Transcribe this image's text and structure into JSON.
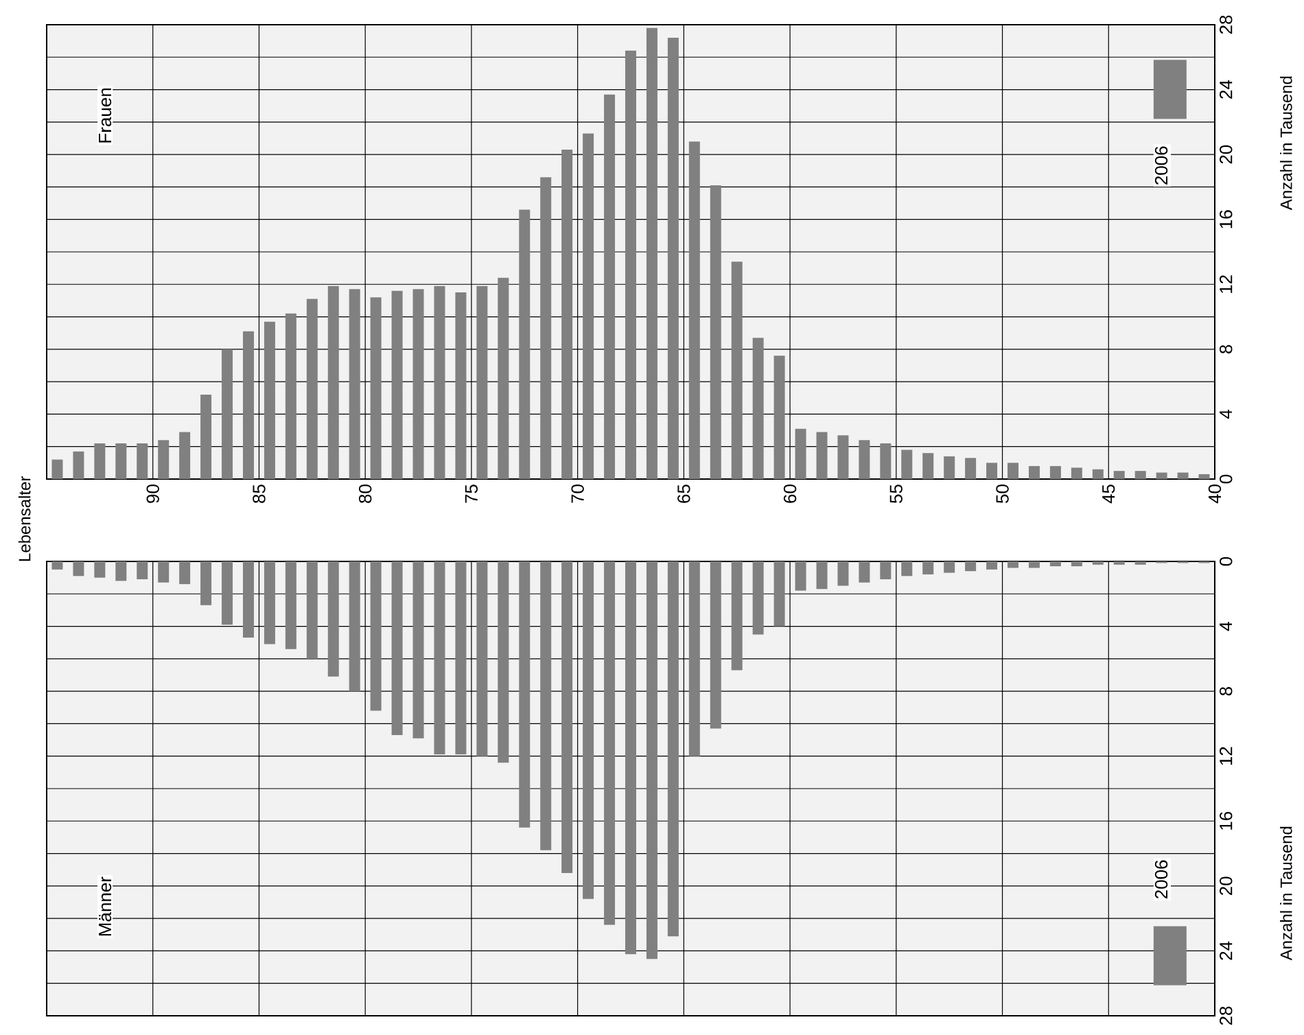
{
  "chart_data": [
    {
      "type": "histogram",
      "title": "Frauen",
      "annotations": [
        "Lebensalter"
      ],
      "ylabel": "Anzahl in Tausend",
      "bins": [
        40,
        41,
        42,
        43,
        44,
        45,
        46,
        47,
        48,
        49,
        50,
        51,
        52,
        53,
        54,
        55,
        56,
        57,
        58,
        59,
        60,
        61,
        62,
        63,
        64,
        65,
        66,
        67,
        68,
        69,
        70,
        71,
        72,
        73,
        74,
        75,
        76,
        77,
        78,
        79,
        80,
        81,
        82,
        83,
        84,
        85,
        86,
        87,
        88,
        89,
        90,
        91,
        92,
        93,
        94,
        95
      ],
      "series": [
        {
          "name": "2006",
          "color": "#808080",
          "values": [
            0.3,
            0.4,
            0.4,
            0.5,
            0.5,
            0.6,
            0.7,
            0.8,
            0.8,
            1.0,
            1.0,
            1.3,
            1.4,
            1.6,
            1.8,
            2.2,
            2.4,
            2.7,
            2.9,
            3.1,
            7.6,
            8.7,
            13.4,
            18.1,
            20.8,
            27.2,
            27.8,
            26.4,
            23.7,
            21.3,
            20.3,
            18.6,
            16.6,
            12.4,
            11.9,
            11.5,
            11.9,
            11.7,
            11.6,
            11.2,
            11.7,
            11.9,
            11.1,
            10.2,
            9.7,
            9.1,
            8.0,
            5.2,
            2.9,
            2.4,
            2.2,
            2.2,
            2.2,
            1.7,
            1.2
          ]
        }
      ],
      "xlim": [
        95,
        40
      ],
      "xticks": [
        90,
        85,
        80,
        75,
        70,
        65,
        60,
        55,
        50,
        45,
        40
      ],
      "ylim": [
        0,
        28
      ],
      "yticks": [
        0,
        4,
        8,
        12,
        16,
        20,
        24,
        28
      ],
      "grid": true,
      "legend": "top right"
    },
    {
      "type": "histogram",
      "title": "Männer",
      "ylabel": "Anzahl in Tausend",
      "bins": [
        40,
        41,
        42,
        43,
        44,
        45,
        46,
        47,
        48,
        49,
        50,
        51,
        52,
        53,
        54,
        55,
        56,
        57,
        58,
        59,
        60,
        61,
        62,
        63,
        64,
        65,
        66,
        67,
        68,
        69,
        70,
        71,
        72,
        73,
        74,
        75,
        76,
        77,
        78,
        79,
        80,
        81,
        82,
        83,
        84,
        85,
        86,
        87,
        88,
        89,
        90,
        91,
        92,
        93,
        94,
        95
      ],
      "series": [
        {
          "name": "2006",
          "color": "#808080",
          "values": [
            0.1,
            0.1,
            0.1,
            0.2,
            0.2,
            0.2,
            0.3,
            0.3,
            0.4,
            0.4,
            0.5,
            0.6,
            0.7,
            0.8,
            0.9,
            1.1,
            1.3,
            1.5,
            1.7,
            1.8,
            4.0,
            4.5,
            6.7,
            10.3,
            12.0,
            23.1,
            24.5,
            24.2,
            22.4,
            20.8,
            19.2,
            17.8,
            16.4,
            12.4,
            12.0,
            11.9,
            11.9,
            10.9,
            10.7,
            9.2,
            8.0,
            7.1,
            6.0,
            5.4,
            5.1,
            4.7,
            3.9,
            2.7,
            1.4,
            1.3,
            1.1,
            1.2,
            1.0,
            0.9,
            0.5
          ]
        }
      ],
      "xlim": [
        95,
        40
      ],
      "xticks": [
        90,
        85,
        80,
        75,
        70,
        65,
        60,
        55,
        50,
        45,
        40
      ],
      "ylim": [
        28,
        0
      ],
      "yticks": [
        0,
        4,
        8,
        12,
        16,
        20,
        24,
        28
      ],
      "grid": true,
      "legend": "bottom right",
      "tick_labels": "y"
    }
  ]
}
